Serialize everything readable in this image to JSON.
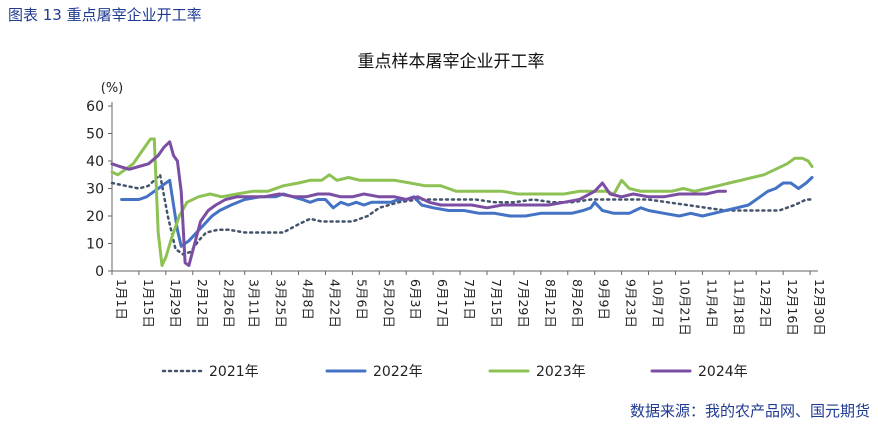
{
  "figure_caption": "图表 13  重点屠宰企业开工率",
  "source_note": "数据来源：我的农产品网、国元期货",
  "colors": {
    "caption": "#1f3a93",
    "2021": "#44546a",
    "2022": "#4472c4",
    "2023": "#8dc153",
    "2024": "#7b4ea3"
  },
  "chart_data": {
    "type": "line",
    "title": "重点样本屠宰企业开工率",
    "y_unit": "(%)",
    "xlabel": "",
    "ylabel": "",
    "ylim": [
      0,
      60
    ],
    "yticks": [
      0,
      10,
      20,
      30,
      40,
      50,
      60
    ],
    "grid": false,
    "legend_position": "bottom",
    "x_range_days": [
      1,
      365
    ],
    "categories": [
      {
        "label": "1月1日",
        "day": 1
      },
      {
        "label": "1月15日",
        "day": 15
      },
      {
        "label": "1月29日",
        "day": 29
      },
      {
        "label": "2月12日",
        "day": 43
      },
      {
        "label": "2月26日",
        "day": 57
      },
      {
        "label": "3月11日",
        "day": 70
      },
      {
        "label": "3月25日",
        "day": 84
      },
      {
        "label": "4月8日",
        "day": 98
      },
      {
        "label": "4月22日",
        "day": 112
      },
      {
        "label": "5月6日",
        "day": 126
      },
      {
        "label": "5月20日",
        "day": 140
      },
      {
        "label": "6月3日",
        "day": 154
      },
      {
        "label": "6月17日",
        "day": 168
      },
      {
        "label": "7月1日",
        "day": 182
      },
      {
        "label": "7月15日",
        "day": 196
      },
      {
        "label": "7月29日",
        "day": 210
      },
      {
        "label": "8月12日",
        "day": 224
      },
      {
        "label": "8月26日",
        "day": 238
      },
      {
        "label": "9月9日",
        "day": 252
      },
      {
        "label": "9月23日",
        "day": 266
      },
      {
        "label": "10月7日",
        "day": 280
      },
      {
        "label": "10月21日",
        "day": 294
      },
      {
        "label": "11月4日",
        "day": 308
      },
      {
        "label": "11月18日",
        "day": 322
      },
      {
        "label": "12月2日",
        "day": 336
      },
      {
        "label": "12月16日",
        "day": 350
      },
      {
        "label": "12月30日",
        "day": 364
      }
    ],
    "series": [
      {
        "name": "2021年",
        "color": "#44546a",
        "style": "dotted",
        "points": [
          [
            1,
            32
          ],
          [
            8,
            31
          ],
          [
            15,
            30
          ],
          [
            20,
            31
          ],
          [
            26,
            35
          ],
          [
            30,
            20
          ],
          [
            34,
            8
          ],
          [
            38,
            6
          ],
          [
            42,
            7
          ],
          [
            46,
            11
          ],
          [
            50,
            14
          ],
          [
            56,
            15
          ],
          [
            62,
            15
          ],
          [
            70,
            14
          ],
          [
            80,
            14
          ],
          [
            90,
            14
          ],
          [
            98,
            17
          ],
          [
            104,
            19
          ],
          [
            110,
            18
          ],
          [
            118,
            18
          ],
          [
            126,
            18
          ],
          [
            134,
            20
          ],
          [
            140,
            23
          ],
          [
            150,
            25
          ],
          [
            160,
            26
          ],
          [
            170,
            26
          ],
          [
            180,
            26
          ],
          [
            190,
            26
          ],
          [
            200,
            25
          ],
          [
            210,
            25
          ],
          [
            220,
            26
          ],
          [
            230,
            25
          ],
          [
            240,
            25
          ],
          [
            250,
            26
          ],
          [
            260,
            26
          ],
          [
            270,
            26
          ],
          [
            280,
            26
          ],
          [
            290,
            25
          ],
          [
            300,
            24
          ],
          [
            310,
            23
          ],
          [
            320,
            22
          ],
          [
            330,
            22
          ],
          [
            340,
            22
          ],
          [
            348,
            22
          ],
          [
            356,
            24
          ],
          [
            362,
            26
          ],
          [
            365,
            26
          ]
        ]
      },
      {
        "name": "2022年",
        "color": "#4472c4",
        "style": "solid",
        "points": [
          [
            6,
            26
          ],
          [
            10,
            26
          ],
          [
            15,
            26
          ],
          [
            19,
            27
          ],
          [
            23,
            29
          ],
          [
            27,
            31
          ],
          [
            31,
            33
          ],
          [
            35,
            15
          ],
          [
            37,
            9
          ],
          [
            41,
            11
          ],
          [
            45,
            14
          ],
          [
            49,
            17
          ],
          [
            53,
            20
          ],
          [
            57,
            22
          ],
          [
            63,
            24
          ],
          [
            70,
            26
          ],
          [
            78,
            27
          ],
          [
            86,
            27
          ],
          [
            90,
            28
          ],
          [
            95,
            27
          ],
          [
            100,
            26
          ],
          [
            104,
            25
          ],
          [
            108,
            26
          ],
          [
            112,
            26
          ],
          [
            116,
            23
          ],
          [
            120,
            25
          ],
          [
            124,
            24
          ],
          [
            128,
            25
          ],
          [
            132,
            24
          ],
          [
            136,
            25
          ],
          [
            140,
            25
          ],
          [
            146,
            25
          ],
          [
            150,
            26
          ],
          [
            154,
            26
          ],
          [
            158,
            27
          ],
          [
            162,
            24
          ],
          [
            168,
            23
          ],
          [
            176,
            22
          ],
          [
            184,
            22
          ],
          [
            192,
            21
          ],
          [
            200,
            21
          ],
          [
            208,
            20
          ],
          [
            216,
            20
          ],
          [
            224,
            21
          ],
          [
            232,
            21
          ],
          [
            240,
            21
          ],
          [
            246,
            22
          ],
          [
            250,
            23
          ],
          [
            252,
            25
          ],
          [
            256,
            22
          ],
          [
            262,
            21
          ],
          [
            270,
            21
          ],
          [
            276,
            23
          ],
          [
            280,
            22
          ],
          [
            288,
            21
          ],
          [
            296,
            20
          ],
          [
            302,
            21
          ],
          [
            308,
            20
          ],
          [
            314,
            21
          ],
          [
            320,
            22
          ],
          [
            326,
            23
          ],
          [
            332,
            24
          ],
          [
            338,
            27
          ],
          [
            342,
            29
          ],
          [
            346,
            30
          ],
          [
            350,
            32
          ],
          [
            354,
            32
          ],
          [
            358,
            30
          ],
          [
            362,
            32
          ],
          [
            365,
            34
          ]
        ]
      },
      {
        "name": "2023年",
        "color": "#8dc153",
        "style": "solid",
        "points": [
          [
            1,
            36
          ],
          [
            4,
            35
          ],
          [
            8,
            37
          ],
          [
            12,
            39
          ],
          [
            15,
            42
          ],
          [
            18,
            45
          ],
          [
            21,
            48
          ],
          [
            23,
            48
          ],
          [
            25,
            14
          ],
          [
            27,
            2
          ],
          [
            29,
            5
          ],
          [
            32,
            12
          ],
          [
            36,
            20
          ],
          [
            40,
            25
          ],
          [
            46,
            27
          ],
          [
            52,
            28
          ],
          [
            58,
            27
          ],
          [
            66,
            28
          ],
          [
            74,
            29
          ],
          [
            82,
            29
          ],
          [
            90,
            31
          ],
          [
            98,
            32
          ],
          [
            104,
            33
          ],
          [
            110,
            33
          ],
          [
            114,
            35
          ],
          [
            118,
            33
          ],
          [
            124,
            34
          ],
          [
            130,
            33
          ],
          [
            136,
            33
          ],
          [
            142,
            33
          ],
          [
            148,
            33
          ],
          [
            156,
            32
          ],
          [
            164,
            31
          ],
          [
            172,
            31
          ],
          [
            176,
            30
          ],
          [
            180,
            29
          ],
          [
            188,
            29
          ],
          [
            196,
            29
          ],
          [
            204,
            29
          ],
          [
            212,
            28
          ],
          [
            220,
            28
          ],
          [
            228,
            28
          ],
          [
            236,
            28
          ],
          [
            244,
            29
          ],
          [
            252,
            29
          ],
          [
            258,
            29
          ],
          [
            262,
            28
          ],
          [
            266,
            33
          ],
          [
            270,
            30
          ],
          [
            276,
            29
          ],
          [
            284,
            29
          ],
          [
            292,
            29
          ],
          [
            298,
            30
          ],
          [
            304,
            29
          ],
          [
            310,
            30
          ],
          [
            316,
            31
          ],
          [
            322,
            32
          ],
          [
            328,
            33
          ],
          [
            334,
            34
          ],
          [
            340,
            35
          ],
          [
            346,
            37
          ],
          [
            352,
            39
          ],
          [
            356,
            41
          ],
          [
            360,
            41
          ],
          [
            363,
            40
          ],
          [
            365,
            38
          ]
        ]
      },
      {
        "name": "2024年",
        "color": "#7b4ea3",
        "style": "solid",
        "points": [
          [
            1,
            39
          ],
          [
            5,
            38
          ],
          [
            10,
            37
          ],
          [
            15,
            38
          ],
          [
            20,
            39
          ],
          [
            25,
            42
          ],
          [
            28,
            45
          ],
          [
            31,
            47
          ],
          [
            33,
            42
          ],
          [
            35,
            40
          ],
          [
            37,
            29
          ],
          [
            39,
            3
          ],
          [
            41,
            2
          ],
          [
            44,
            10
          ],
          [
            47,
            18
          ],
          [
            51,
            22
          ],
          [
            55,
            24
          ],
          [
            60,
            26
          ],
          [
            66,
            27
          ],
          [
            72,
            27
          ],
          [
            80,
            27
          ],
          [
            88,
            28
          ],
          [
            96,
            27
          ],
          [
            102,
            27
          ],
          [
            108,
            28
          ],
          [
            114,
            28
          ],
          [
            120,
            27
          ],
          [
            126,
            27
          ],
          [
            132,
            28
          ],
          [
            140,
            27
          ],
          [
            148,
            27
          ],
          [
            154,
            26
          ],
          [
            160,
            27
          ],
          [
            166,
            25
          ],
          [
            172,
            24
          ],
          [
            180,
            24
          ],
          [
            188,
            24
          ],
          [
            196,
            23
          ],
          [
            204,
            24
          ],
          [
            212,
            24
          ],
          [
            220,
            24
          ],
          [
            228,
            24
          ],
          [
            236,
            25
          ],
          [
            244,
            26
          ],
          [
            252,
            29
          ],
          [
            256,
            32
          ],
          [
            260,
            28
          ],
          [
            266,
            27
          ],
          [
            272,
            28
          ],
          [
            280,
            27
          ],
          [
            288,
            27
          ],
          [
            296,
            28
          ],
          [
            304,
            28
          ],
          [
            310,
            28
          ],
          [
            316,
            29
          ],
          [
            320,
            29
          ]
        ]
      }
    ]
  }
}
